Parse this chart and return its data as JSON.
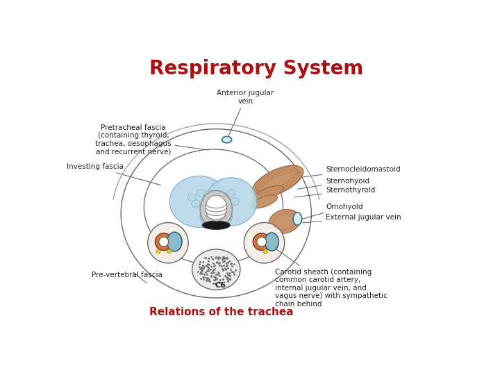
{
  "title": "Respiratory System",
  "subtitle": "Relations of the trachea",
  "title_color": "#aa1111",
  "subtitle_color": "#aa1111",
  "bg_color": "#ffffff",
  "title_fontsize": 20,
  "subtitle_fontsize": 11,
  "label_fontsize": 7.5,
  "labels": {
    "pretracheal": "Pretracheal fascia\n(containing thyroid,\ntrachea, oesophagus\nand recurrent nerve)",
    "anterior_jugular": "Anterior jugular\nvein",
    "investing": "Investing fascia",
    "sternocleidomastoid": "Sternocleidomastoid",
    "sternohyoid": "Sternohyoid",
    "sternothyroid": "Sternothyrold",
    "omohyoid": "Omohyold",
    "external_jugular": "External jugular vein",
    "carotid_sheath": "Carotid sheath (containing\ncommon carotid artery,\ninternal jugular vein, and\nvagus nerve) with sympathetic\nchain behind",
    "prevertebral": "Pre-vertebral fascia",
    "c6": "C6"
  },
  "colors": {
    "thyroid_blue": "#b8d8e8",
    "thyroid_outline": "#7aabcc",
    "muscle_tan": "#c8956a",
    "muscle_dark": "#b07850",
    "muscle_outline": "#906040",
    "trachea_gray": "#909090",
    "trachea_light": "#c8c8c8",
    "trachea_dark": "#686868",
    "esophagus_black": "#181818",
    "carotid_brown_outer": "#884422",
    "carotid_brown_inner": "#cc7744",
    "jugular_teal_dark": "#336677",
    "jugular_teal_light": "#88bbcc",
    "vein_teal": "#337788",
    "vertebra_fill": "#e8e8e8",
    "fascia_outline": "#666666",
    "nerve_yellow": "#ddcc44",
    "skin_line": "#999999",
    "line_color": "#555555"
  }
}
